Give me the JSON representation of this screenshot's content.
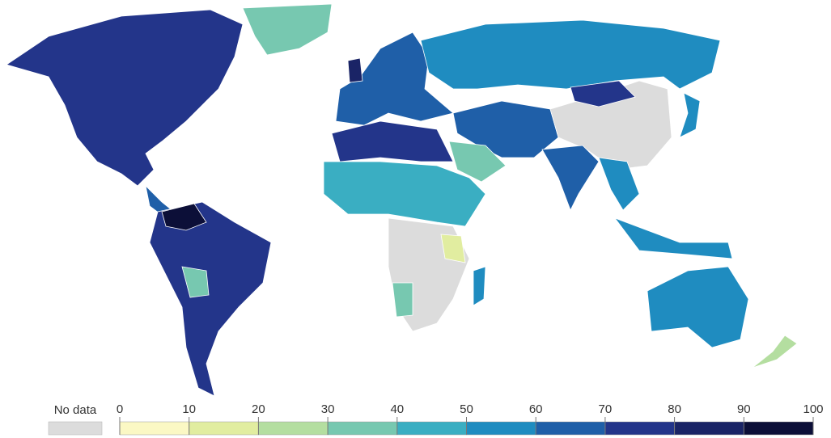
{
  "legend": {
    "no_data_label": "No data",
    "no_data_color": "#dcdcdc",
    "ticks": [
      0,
      10,
      20,
      30,
      40,
      50,
      60,
      70,
      80,
      90,
      100
    ],
    "colors": [
      "#fbf8c4",
      "#e1eda0",
      "#b4dea0",
      "#77c8b0",
      "#3aaec2",
      "#1f8cc0",
      "#1f5fa8",
      "#23358a",
      "#1a2466",
      "#0c0f38"
    ]
  }
}
